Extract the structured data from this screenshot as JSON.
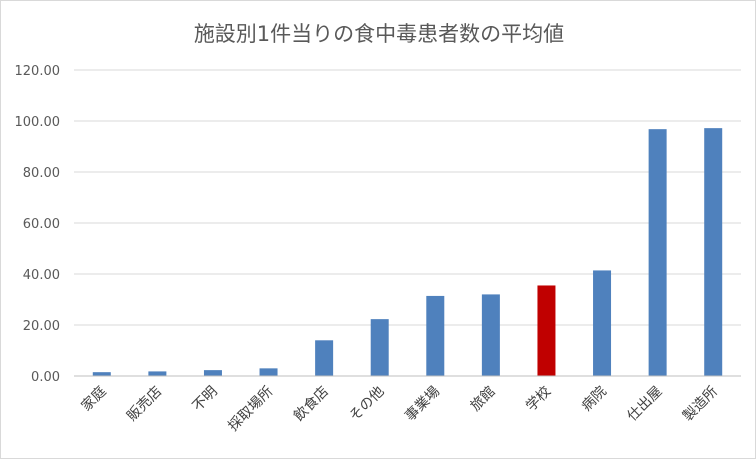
{
  "chart_data": {
    "type": "bar",
    "title": "施設別1件当りの食中毒患者数の平均値",
    "xlabel": "",
    "ylabel": "",
    "ylim": [
      0,
      120
    ],
    "yticks": [
      "0.00",
      "20.00",
      "40.00",
      "60.00",
      "80.00",
      "100.00",
      "120.00"
    ],
    "grid": true,
    "legend": "none",
    "categories": [
      "家庭",
      "販売店",
      "不明",
      "採取場所",
      "飲食店",
      "その他",
      "事業場",
      "旅館",
      "学校",
      "病院",
      "仕出屋",
      "製造所"
    ],
    "values": [
      1.5,
      1.8,
      2.3,
      3.0,
      14.0,
      22.3,
      31.4,
      32.0,
      35.5,
      41.4,
      96.8,
      97.2
    ],
    "colors": {
      "bar": "#4f81bd",
      "highlight": "#c00000",
      "grid": "#d9d9d9",
      "axis": "#bfbfbf"
    },
    "highlight_category": "学校"
  }
}
